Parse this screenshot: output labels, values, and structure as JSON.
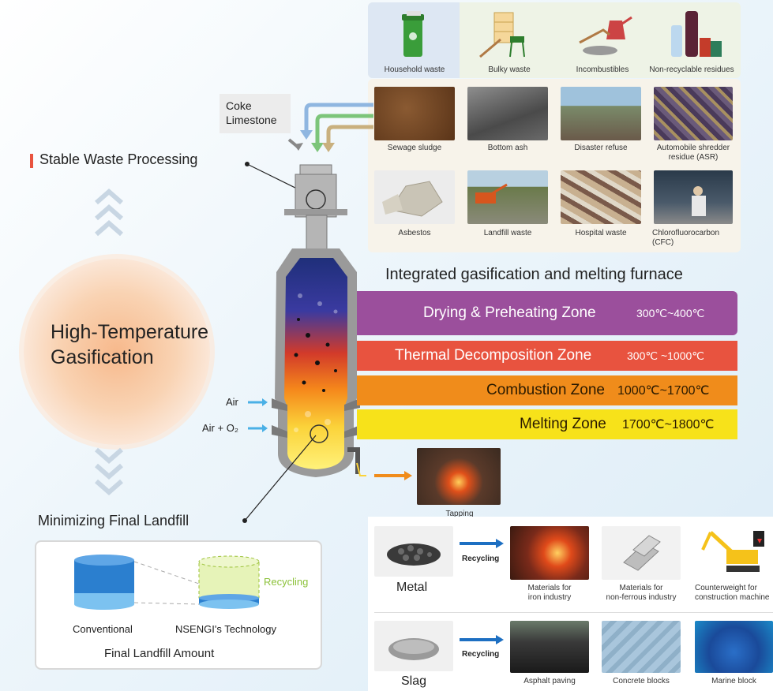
{
  "waste_types": {
    "row1": [
      "Household waste",
      "Bulky waste",
      "Incombustibles",
      "Non-recyclable residues"
    ],
    "row2": [
      "Sewage sludge",
      "Bottom ash",
      "Disaster refuse",
      "Automobile shredder\nresidue (ASR)"
    ],
    "row3": [
      "Asbestos",
      "Landfill waste",
      "Hospital waste",
      "Chlorofluorocarbon\n(CFC)"
    ]
  },
  "inputs": {
    "coke": "Coke",
    "limestone": "Limestone"
  },
  "headings": {
    "stable": "Stable Waste Processing",
    "furnace": "Integrated gasification and melting furnace",
    "high_temp_line1": "High-Temperature",
    "high_temp_line2": "Gasification",
    "minimizing": "Minimizing Final Landfill"
  },
  "zones": [
    {
      "name": "Drying & Preheating Zone",
      "temp": "300℃~400℃",
      "color": "#9b4f9c"
    },
    {
      "name": "Thermal Decomposition Zone",
      "temp": "300℃ ~1000℃",
      "color": "#e8533f"
    },
    {
      "name": "Combustion Zone",
      "temp": "1000℃~1700℃",
      "color": "#f08c1b"
    },
    {
      "name": "Melting Zone",
      "temp": "1700℃~1800℃",
      "color": "#f7e21a"
    }
  ],
  "air": {
    "air": "Air",
    "air_o2": "Air + O₂"
  },
  "tapping": "Tapping",
  "metal": {
    "label": "Metal",
    "recycling": "Recycling",
    "uses": [
      "Materials for\niron industry",
      "Materials for\nnon-ferrous industry",
      "Counterweight for\nconstruction machine"
    ]
  },
  "slag": {
    "label": "Slag",
    "recycling": "Recycling",
    "uses": [
      "Asphalt paving",
      "Concrete blocks",
      "Marine block"
    ]
  },
  "landfill": {
    "recycling": "Recycling",
    "conventional": "Conventional",
    "nsengi": "NSENGI's Technology",
    "title": "Final Landfill Amount"
  },
  "colors": {
    "accent": "#e8533f",
    "blue_arrow": "#1d6fc2",
    "orange_arrow": "#f08c1b"
  }
}
